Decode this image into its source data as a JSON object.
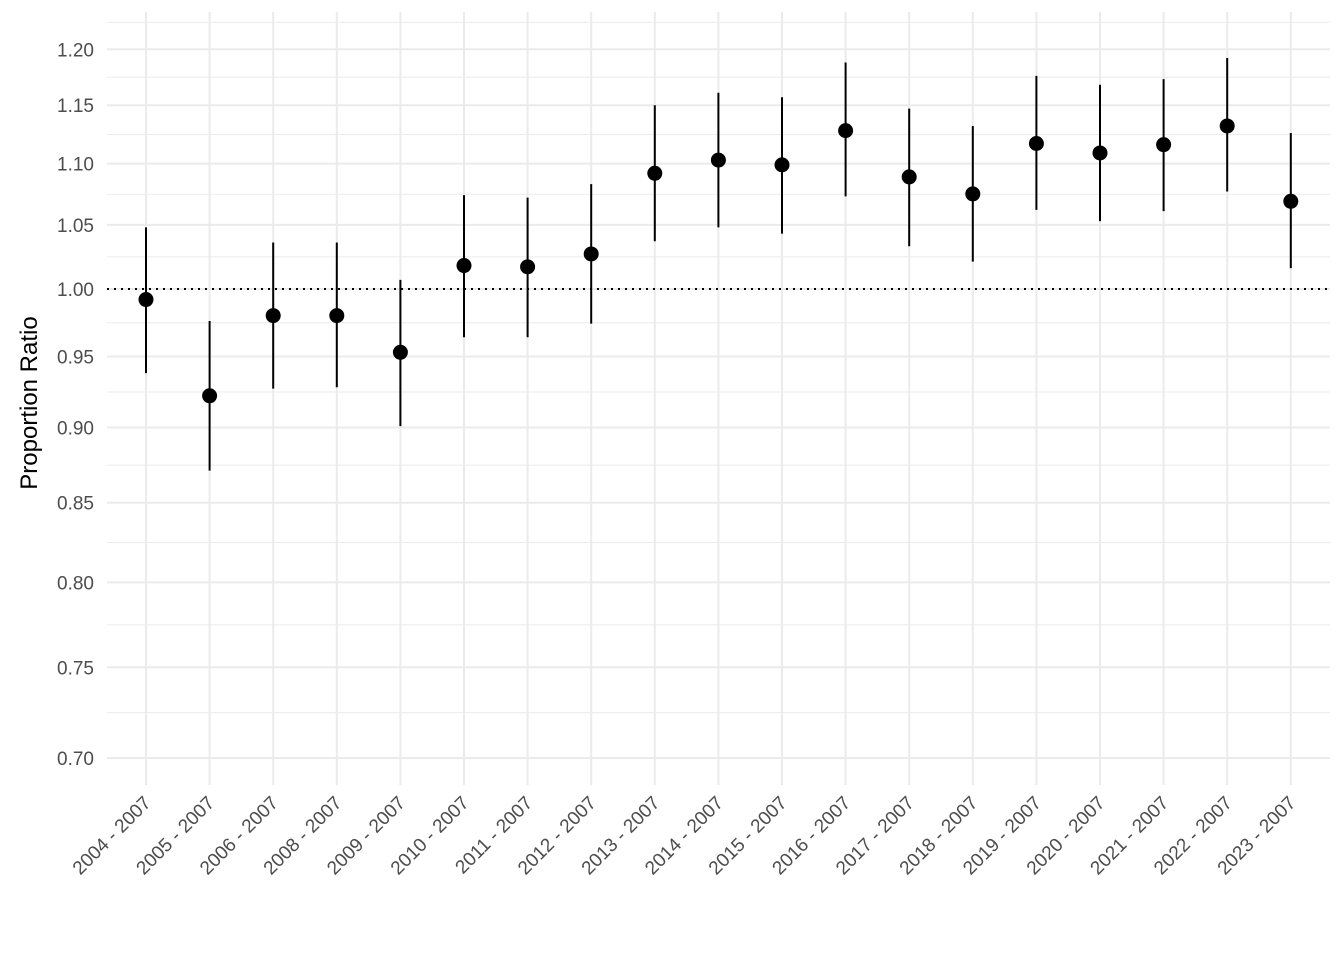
{
  "chart_data": {
    "type": "scatter",
    "ylabel": "Proportion Ratio",
    "xlabel": "",
    "y_scale": "log",
    "ylim": [
      0.68,
      1.23
    ],
    "y_ticks": [
      0.7,
      0.75,
      0.8,
      0.85,
      0.9,
      0.95,
      1.0,
      1.05,
      1.1,
      1.15,
      1.2
    ],
    "y_tick_labels": [
      "0.70",
      "0.75",
      "0.80",
      "0.85",
      "0.90",
      "0.95",
      "1.00",
      "1.05",
      "1.10",
      "1.15",
      "1.20"
    ],
    "reference_line": {
      "y": 1.0,
      "style": "dotted"
    },
    "grid": true,
    "categories": [
      "2004 - 2007",
      "2005 - 2007",
      "2006 - 2007",
      "2008 - 2007",
      "2009 - 2007",
      "2010 - 2007",
      "2011 - 2007",
      "2012 - 2007",
      "2013 - 2007",
      "2014 - 2007",
      "2015 - 2007",
      "2016 - 2007",
      "2017 - 2007",
      "2018 - 2007",
      "2019 - 2007",
      "2020 - 2007",
      "2021 - 2007",
      "2022 - 2007",
      "2023 - 2007"
    ],
    "estimate": [
      0.992,
      0.922,
      0.98,
      0.98,
      0.953,
      1.018,
      1.017,
      1.027,
      1.092,
      1.103,
      1.099,
      1.128,
      1.089,
      1.075,
      1.117,
      1.109,
      1.116,
      1.132,
      1.069
    ],
    "lower": [
      0.938,
      0.871,
      0.927,
      0.928,
      0.901,
      0.964,
      0.964,
      0.974,
      1.037,
      1.048,
      1.043,
      1.073,
      1.033,
      1.021,
      1.062,
      1.053,
      1.061,
      1.077,
      1.016
    ],
    "upper": [
      1.048,
      0.976,
      1.036,
      1.036,
      1.007,
      1.074,
      1.072,
      1.083,
      1.15,
      1.161,
      1.157,
      1.188,
      1.147,
      1.132,
      1.176,
      1.168,
      1.173,
      1.192,
      1.126
    ],
    "colors": {
      "point": "#000000",
      "errorbar": "#000000",
      "grid": "#ebebeb",
      "reference": "#000000"
    }
  }
}
